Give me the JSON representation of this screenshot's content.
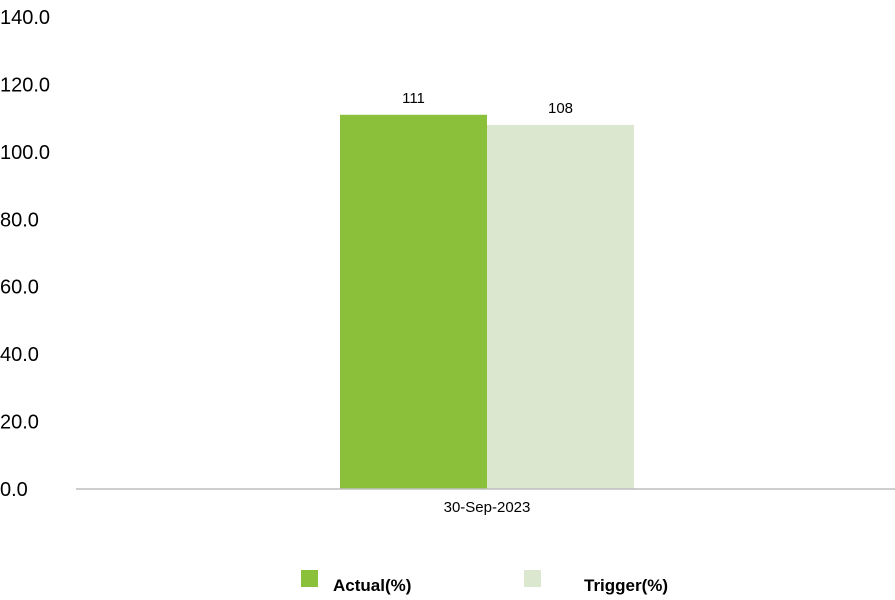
{
  "chart_data": {
    "type": "bar",
    "categories": [
      "30-Sep-2023"
    ],
    "series": [
      {
        "name": "Actual(%)",
        "values": [
          111
        ],
        "color": "#8bc13a"
      },
      {
        "name": "Trigger(%)",
        "values": [
          108
        ],
        "color": "#dbe7cf"
      }
    ],
    "data_labels": [
      "111",
      "108"
    ],
    "yticks": [
      "0.0",
      "20.0",
      "40.0",
      "60.0",
      "80.0",
      "100.0",
      "120.0",
      "140.0"
    ],
    "ylim": [
      0,
      140
    ],
    "grid": false,
    "legend_position": "bottom"
  }
}
